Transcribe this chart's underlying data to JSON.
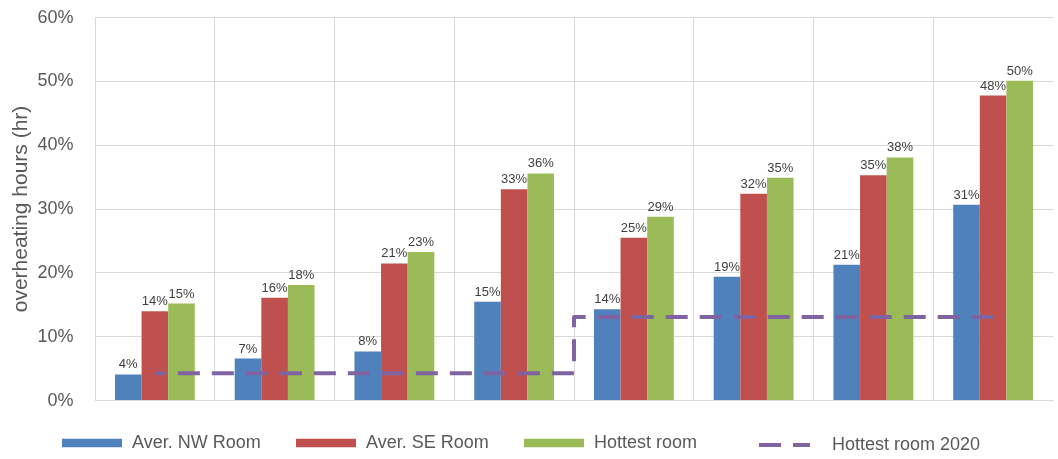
{
  "chart_data": {
    "type": "bar",
    "ylabel": "overheating hours (hr)",
    "categories": [
      null,
      null,
      null,
      null,
      null,
      null,
      null,
      null
    ],
    "series": [
      {
        "name": "Aver. NW Room",
        "color": "#4f81bd",
        "values": [
          4.0,
          6.5,
          7.6,
          15.4,
          14.2,
          19.3,
          21.2,
          30.6
        ],
        "value_labels": [
          "4%",
          "7%",
          "8%",
          "15%",
          "14%",
          "19%",
          "21%",
          "31%"
        ]
      },
      {
        "name": "Aver. SE Room",
        "color": "#c0504d",
        "values": [
          13.9,
          16.0,
          21.4,
          33.0,
          25.4,
          32.3,
          35.2,
          47.7
        ],
        "value_labels": [
          "14%",
          "16%",
          "21%",
          "33%",
          "25%",
          "32%",
          "35%",
          "48%"
        ]
      },
      {
        "name": "Hottest room",
        "color": "#9bbb59",
        "values": [
          15.1,
          18.0,
          23.2,
          35.5,
          28.7,
          34.8,
          38.0,
          50.0
        ],
        "value_labels": [
          "15%",
          "18%",
          "23%",
          "36%",
          "29%",
          "35%",
          "38%",
          "50%"
        ]
      },
      {
        "name": "Hottest room 2020",
        "type": "step",
        "color": "#8064a2",
        "line_style": "dashed",
        "values": [
          4.2,
          4.2,
          4.2,
          4.2,
          13.0,
          13.0,
          13.0,
          13.0
        ]
      }
    ],
    "ylim": [
      0,
      60
    ],
    "yticks": [
      {
        "value": 0,
        "label": "0%"
      },
      {
        "value": 10,
        "label": "10%"
      },
      {
        "value": 20,
        "label": "20%"
      },
      {
        "value": 30,
        "label": "30%"
      },
      {
        "value": 40,
        "label": "40%"
      },
      {
        "value": 50,
        "label": "50%"
      },
      {
        "value": 60,
        "label": "60%"
      }
    ],
    "grid": true,
    "legend": "bottom",
    "tick_labels": "y"
  }
}
